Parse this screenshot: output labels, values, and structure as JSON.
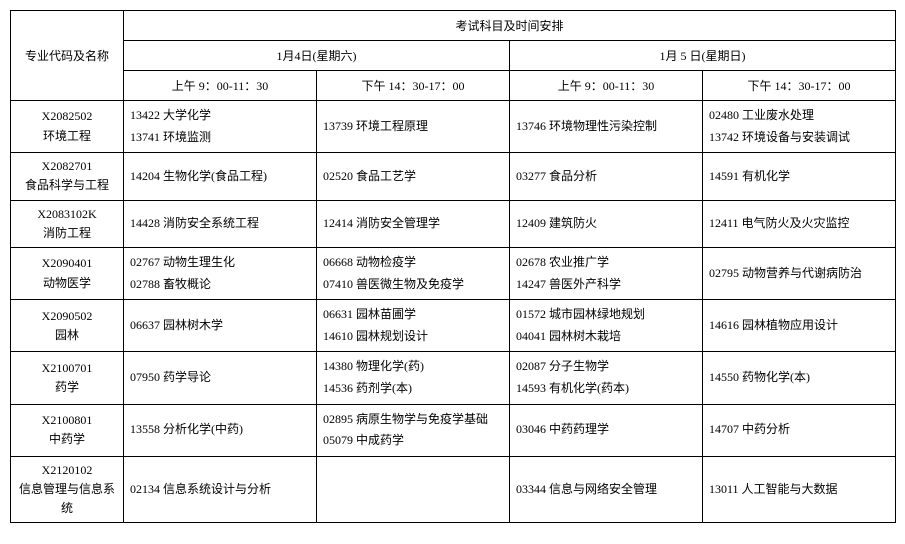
{
  "header": {
    "major_col": "专业代码及名称",
    "top": "考试科目及时间安排",
    "day1": "1月4日(星期六)",
    "day2": "1月 5 日(星期日)",
    "slot_am": "上午 9：00-11：30",
    "slot_pm": "下午 14：30-17：00"
  },
  "rows": [
    {
      "code": "X2082502",
      "name": "环境工程",
      "slots": [
        [
          {
            "code": "13422",
            "name": "大学化学"
          },
          {
            "code": "13741",
            "name": "环境监测"
          }
        ],
        [
          {
            "code": "13739",
            "name": "环境工程原理"
          }
        ],
        [
          {
            "code": "13746",
            "name": "环境物理性污染控制"
          }
        ],
        [
          {
            "code": "02480",
            "name": "工业废水处理"
          },
          {
            "code": "13742",
            "name": "环境设备与安装调试"
          }
        ]
      ]
    },
    {
      "code": "X2082701",
      "name": "食品科学与工程",
      "slots": [
        [
          {
            "code": "14204",
            "name": "生物化学(食品工程)"
          }
        ],
        [
          {
            "code": "02520",
            "name": "食品工艺学"
          }
        ],
        [
          {
            "code": "03277",
            "name": "食品分析"
          }
        ],
        [
          {
            "code": "14591",
            "name": "有机化学"
          }
        ]
      ]
    },
    {
      "code": "X2083102K",
      "name": "消防工程",
      "slots": [
        [
          {
            "code": "14428",
            "name": "消防安全系统工程"
          }
        ],
        [
          {
            "code": "12414",
            "name": "消防安全管理学"
          }
        ],
        [
          {
            "code": "12409",
            "name": "建筑防火"
          }
        ],
        [
          {
            "code": "12411",
            "name": "电气防火及火灾监控"
          }
        ]
      ]
    },
    {
      "code": "X2090401",
      "name": "动物医学",
      "slots": [
        [
          {
            "code": "02767",
            "name": "动物生理生化"
          },
          {
            "code": "02788",
            "name": "畜牧概论"
          }
        ],
        [
          {
            "code": "06668",
            "name": "动物检疫学"
          },
          {
            "code": "07410",
            "name": "兽医微生物及免疫学"
          }
        ],
        [
          {
            "code": "02678",
            "name": "农业推广学"
          },
          {
            "code": "14247",
            "name": "兽医外产科学"
          }
        ],
        [
          {
            "code": "02795",
            "name": "动物营养与代谢病防治"
          }
        ]
      ]
    },
    {
      "code": "X2090502",
      "name": "园林",
      "slots": [
        [
          {
            "code": "06637",
            "name": "园林树木学"
          }
        ],
        [
          {
            "code": "06631",
            "name": "园林苗圃学"
          },
          {
            "code": "14610",
            "name": "园林规划设计"
          }
        ],
        [
          {
            "code": "01572",
            "name": "城市园林绿地规划"
          },
          {
            "code": "04041",
            "name": "园林树木栽培"
          }
        ],
        [
          {
            "code": "14616",
            "name": "园林植物应用设计"
          }
        ]
      ]
    },
    {
      "code": "X2100701",
      "name": "药学",
      "slots": [
        [
          {
            "code": "07950",
            "name": "药学导论"
          }
        ],
        [
          {
            "code": "14380",
            "name": "物理化学(药)"
          },
          {
            "code": "14536",
            "name": "药剂学(本)"
          }
        ],
        [
          {
            "code": "02087",
            "name": "分子生物学"
          },
          {
            "code": "14593",
            "name": "有机化学(药本)"
          }
        ],
        [
          {
            "code": "14550",
            "name": "药物化学(本)"
          }
        ]
      ]
    },
    {
      "code": "X2100801",
      "name": "中药学",
      "slots": [
        [
          {
            "code": "13558",
            "name": "分析化学(中药)"
          }
        ],
        [
          {
            "code": "02895",
            "name": "病原生物学与免疫学基础"
          },
          {
            "code": "05079",
            "name": "中成药学"
          }
        ],
        [
          {
            "code": "03046",
            "name": "中药药理学"
          }
        ],
        [
          {
            "code": "14707",
            "name": "中药分析"
          }
        ]
      ]
    },
    {
      "code": "X2120102",
      "name": "信息管理与信息系统",
      "slots": [
        [
          {
            "code": "02134",
            "name": "信息系统设计与分析"
          }
        ],
        [],
        [
          {
            "code": "03344",
            "name": "信息与网络安全管理"
          }
        ],
        [
          {
            "code": "13011",
            "name": "人工智能与大数据"
          }
        ]
      ]
    }
  ]
}
